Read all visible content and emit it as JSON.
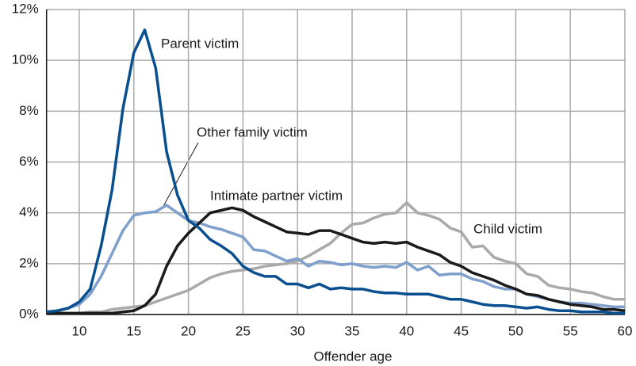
{
  "chart_data": {
    "type": "line",
    "x_label": "Offender age",
    "x": [
      7,
      8,
      9,
      10,
      11,
      12,
      13,
      14,
      15,
      16,
      17,
      18,
      19,
      20,
      21,
      22,
      23,
      24,
      25,
      26,
      27,
      28,
      29,
      30,
      31,
      32,
      33,
      34,
      35,
      36,
      37,
      38,
      39,
      40,
      41,
      42,
      43,
      44,
      45,
      46,
      47,
      48,
      49,
      50,
      51,
      52,
      53,
      54,
      55,
      56,
      57,
      58,
      59,
      60
    ],
    "series": [
      {
        "name": "Child victim",
        "color": "#aaaaaa",
        "values": [
          0.05,
          0.05,
          0.05,
          0.05,
          0.1,
          0.1,
          0.2,
          0.25,
          0.3,
          0.35,
          0.5,
          0.65,
          0.8,
          0.95,
          1.2,
          1.45,
          1.6,
          1.7,
          1.75,
          1.8,
          1.9,
          1.95,
          2.0,
          2.1,
          2.3,
          2.55,
          2.8,
          3.2,
          3.55,
          3.6,
          3.8,
          3.95,
          4.0,
          4.4,
          4.0,
          3.9,
          3.75,
          3.4,
          3.25,
          2.65,
          2.7,
          2.25,
          2.1,
          2.0,
          1.6,
          1.5,
          1.15,
          1.05,
          1.0,
          0.9,
          0.85,
          0.7,
          0.6,
          0.6
        ]
      },
      {
        "name": "Other family victim",
        "color": "#7f9fcc",
        "values": [
          0.1,
          0.15,
          0.25,
          0.4,
          0.8,
          1.5,
          2.4,
          3.3,
          3.9,
          4.0,
          4.05,
          4.3,
          4.0,
          3.7,
          3.6,
          3.45,
          3.35,
          3.2,
          3.05,
          2.55,
          2.5,
          2.3,
          2.1,
          2.2,
          1.9,
          2.1,
          2.05,
          1.95,
          2.0,
          1.9,
          1.85,
          1.9,
          1.85,
          2.05,
          1.75,
          1.9,
          1.55,
          1.6,
          1.6,
          1.4,
          1.3,
          1.1,
          1.0,
          1.0,
          0.8,
          0.7,
          0.6,
          0.5,
          0.45,
          0.45,
          0.4,
          0.35,
          0.3,
          0.3
        ]
      },
      {
        "name": "Intimate partner victim",
        "color": "#1a1a1a",
        "values": [
          0.05,
          0.05,
          0.05,
          0.05,
          0.05,
          0.05,
          0.05,
          0.1,
          0.15,
          0.35,
          0.8,
          1.9,
          2.7,
          3.2,
          3.6,
          4.0,
          4.1,
          4.2,
          4.1,
          3.85,
          3.65,
          3.45,
          3.25,
          3.2,
          3.15,
          3.3,
          3.3,
          3.15,
          3.0,
          2.85,
          2.8,
          2.85,
          2.8,
          2.85,
          2.65,
          2.5,
          2.35,
          2.05,
          1.9,
          1.65,
          1.5,
          1.35,
          1.15,
          1.0,
          0.8,
          0.75,
          0.6,
          0.5,
          0.4,
          0.35,
          0.3,
          0.2,
          0.2,
          0.15
        ]
      },
      {
        "name": "Parent victim",
        "color": "#0a4f8f",
        "values": [
          0.1,
          0.15,
          0.25,
          0.5,
          1.0,
          2.7,
          4.9,
          8.1,
          10.3,
          11.2,
          9.7,
          6.4,
          4.7,
          3.7,
          3.4,
          2.95,
          2.7,
          2.4,
          1.9,
          1.65,
          1.5,
          1.5,
          1.2,
          1.2,
          1.05,
          1.2,
          1.0,
          1.05,
          1.0,
          1.0,
          0.9,
          0.85,
          0.85,
          0.8,
          0.8,
          0.8,
          0.7,
          0.6,
          0.6,
          0.5,
          0.4,
          0.35,
          0.35,
          0.3,
          0.25,
          0.3,
          0.2,
          0.15,
          0.15,
          0.1,
          0.1,
          0.1,
          0.05,
          0.05
        ]
      }
    ],
    "xlim": [
      7,
      60
    ],
    "xticks": [
      10,
      15,
      20,
      25,
      30,
      35,
      40,
      45,
      50,
      55,
      60
    ],
    "ylim": [
      0,
      12
    ],
    "yticks": [
      {
        "value": 0,
        "label": "0%"
      },
      {
        "value": 2,
        "label": "2%"
      },
      {
        "value": 4,
        "label": "4%"
      },
      {
        "value": 6,
        "label": "6%"
      },
      {
        "value": 8,
        "label": "8%"
      },
      {
        "value": 10,
        "label": "10%"
      },
      {
        "value": 12,
        "label": "12%"
      }
    ],
    "grid": true
  }
}
